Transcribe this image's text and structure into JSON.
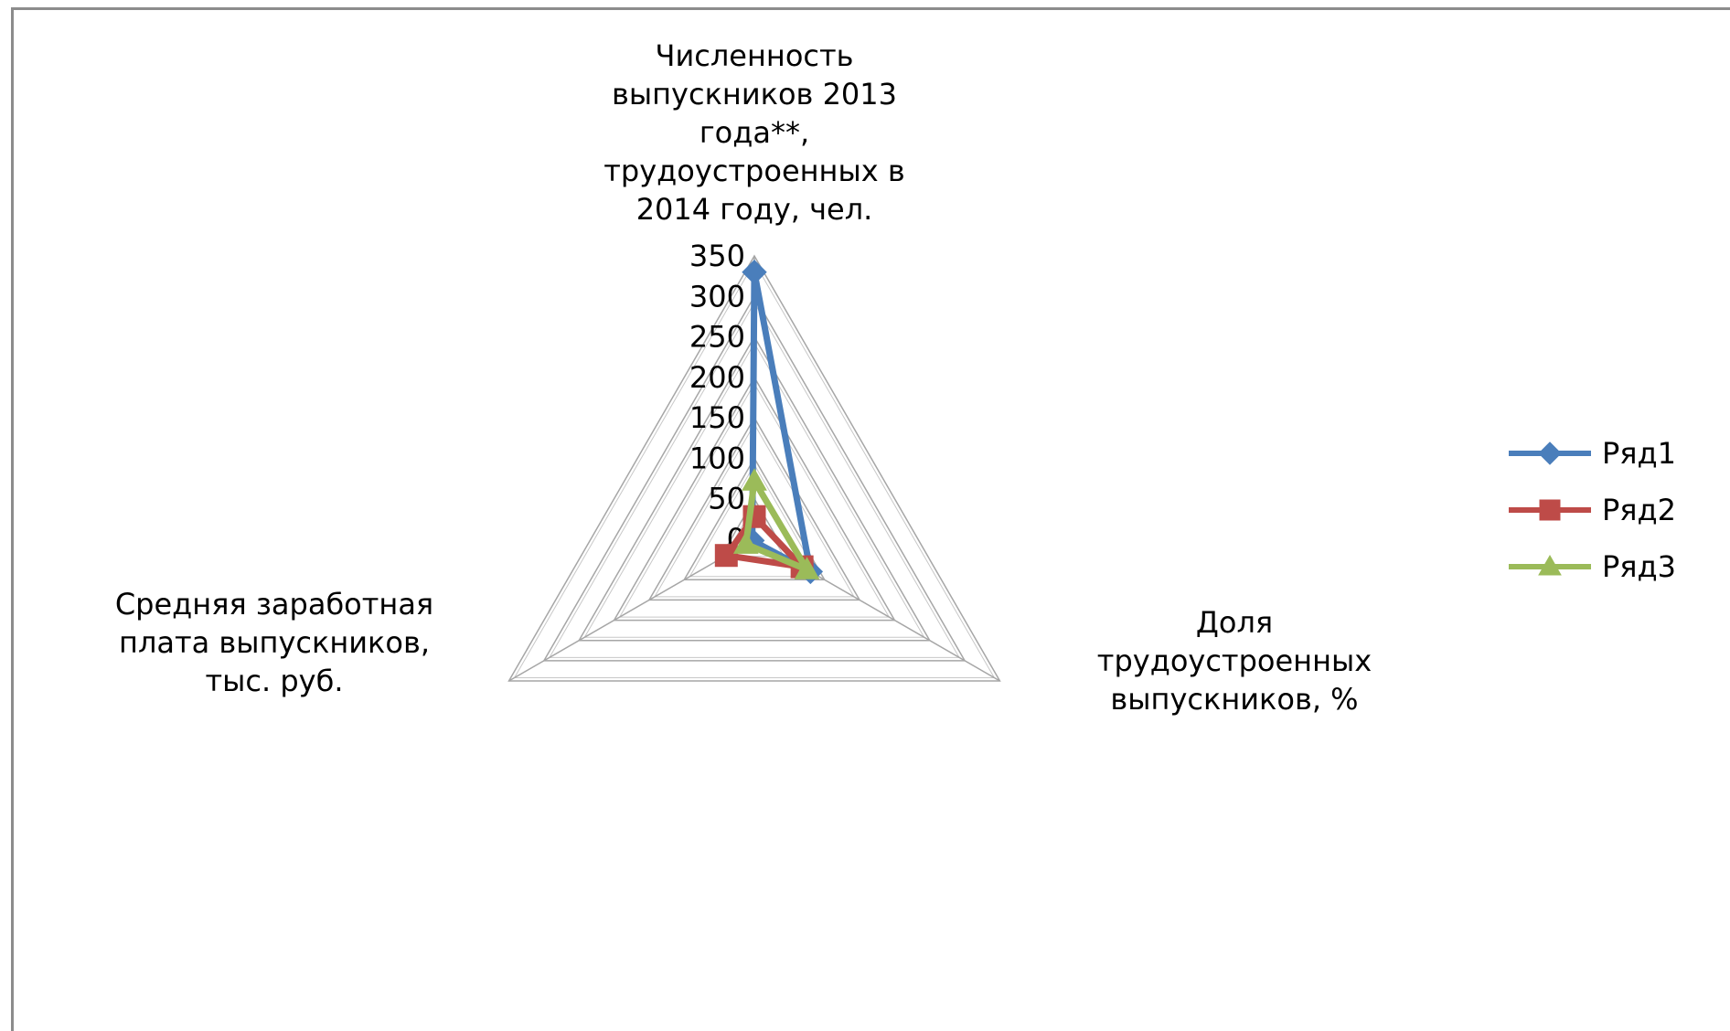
{
  "chart_data": {
    "type": "radar",
    "axes": [
      "Численность выпускников 2013 года**, трудоустроенных в 2014 году, чел.",
      "Доля трудоустроенных выпускников, %",
      "Средняя заработная плата выпускников, тыс. руб."
    ],
    "rlim": [
      0,
      350
    ],
    "ticks": [
      "0",
      "50",
      "100",
      "150",
      "200",
      "250",
      "300",
      "350"
    ],
    "tick_values": [
      0,
      50,
      100,
      150,
      200,
      250,
      300,
      350
    ],
    "grid": true,
    "legend_position": "right",
    "series": [
      {
        "name": "Ряд1",
        "values": [
          330,
          80,
          3
        ],
        "color": "#4a7ebb",
        "marker": "diamond"
      },
      {
        "name": "Ряд2",
        "values": [
          28,
          68,
          40
        ],
        "color": "#be4b48",
        "marker": "square"
      },
      {
        "name": "Ряд3",
        "values": [
          72,
          75,
          12
        ],
        "color": "#9bbb59",
        "marker": "triangle"
      }
    ]
  }
}
